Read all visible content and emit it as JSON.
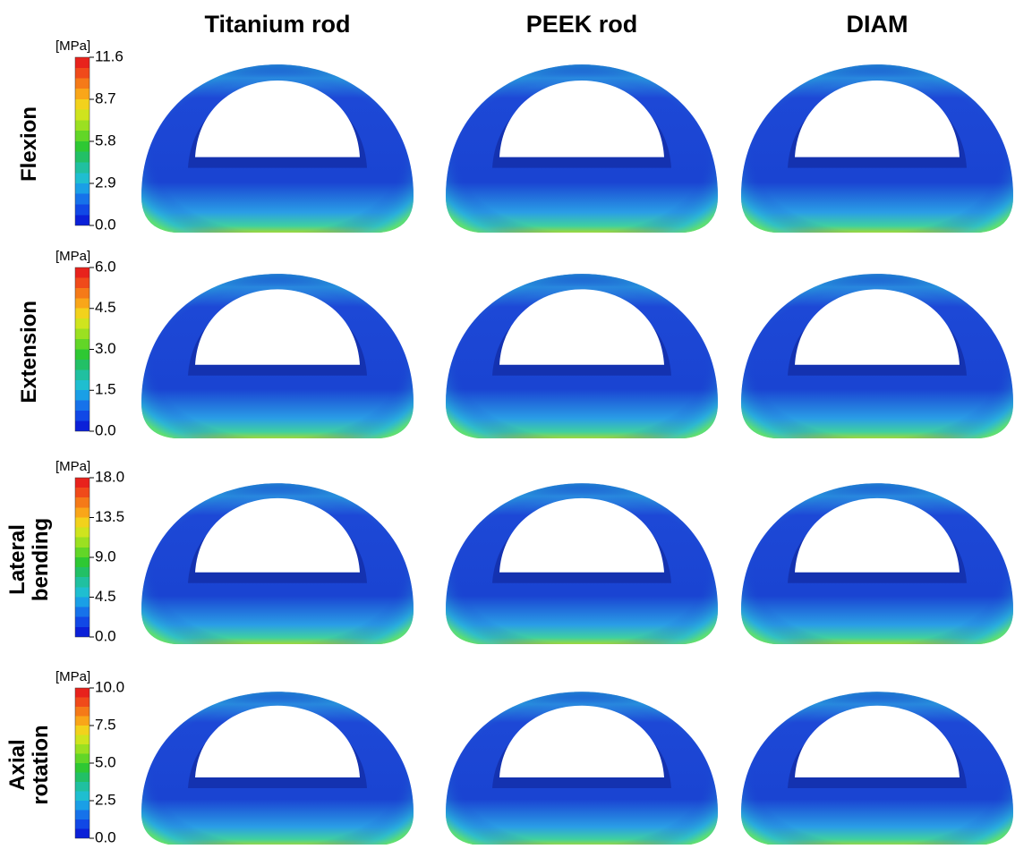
{
  "columns": [
    "Titanium rod",
    "PEEK rod",
    "DIAM"
  ],
  "rows": [
    {
      "label_lines": [
        "Flexion"
      ],
      "unit": "[MPa]",
      "ticks": [
        "11.6",
        "8.7",
        "5.8",
        "2.9",
        "0.0"
      ]
    },
    {
      "label_lines": [
        "Extension"
      ],
      "unit": "[MPa]",
      "ticks": [
        "6.0",
        "4.5",
        "3.0",
        "1.5",
        "0.0"
      ]
    },
    {
      "label_lines": [
        "Lateral",
        "bending"
      ],
      "unit": "[MPa]",
      "ticks": [
        "18.0",
        "13.5",
        "9.0",
        "4.5",
        "0.0"
      ]
    },
    {
      "label_lines": [
        "Axial",
        "rotation"
      ],
      "unit": "[MPa]",
      "ticks": [
        "10.0",
        "7.5",
        "5.0",
        "2.5",
        "0.0"
      ]
    }
  ]
}
